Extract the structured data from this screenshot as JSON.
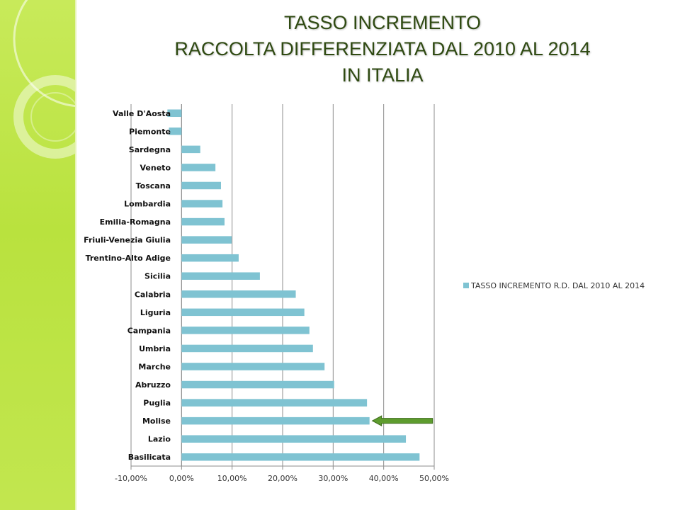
{
  "title_lines": [
    "TASSO INCREMENTO",
    "RACCOLTA DIFFERENZIATA DAL 2010 AL 2014",
    "IN ITALIA"
  ],
  "colors": {
    "bar": "#7fc3d2",
    "grid": "#8c8c8c",
    "arrow": "#5e9c2e",
    "sidebar": "#c0e44b"
  },
  "legend": {
    "position": "right",
    "label": "TASSO INCREMENTO R.D. DAL 2010 AL 2014"
  },
  "chart_data": {
    "type": "bar",
    "orientation": "horizontal",
    "categories": [
      "Valle D'Aosta",
      "Piemonte",
      "Sardegna",
      "Veneto",
      "Toscana",
      "Lombardia",
      "Emilia-Romagna",
      "Friuli-Venezia Giulia",
      "Trentino-Alto Adige",
      "Sicilia",
      "Calabria",
      "Liguria",
      "Campania",
      "Umbria",
      "Marche",
      "Abruzzo",
      "Puglia",
      "Molise",
      "Lazio",
      "Basilicata"
    ],
    "series": [
      {
        "name": "TASSO INCREMENTO R.D. DAL 2010 AL 2014",
        "values": [
          -2.8,
          -2.5,
          3.7,
          6.7,
          7.8,
          8.1,
          8.5,
          9.9,
          11.3,
          15.5,
          22.6,
          24.3,
          25.3,
          26.0,
          28.3,
          30.2,
          36.7,
          37.2,
          44.4,
          47.1
        ]
      }
    ],
    "xlim": [
      -10,
      50
    ],
    "xticks": [
      "-10,00%",
      "0,00%",
      "10,00%",
      "20,00%",
      "30,00%",
      "40,00%",
      "50,00%"
    ],
    "grid": "vertical",
    "annotation": {
      "type": "arrow",
      "points_to": "Molise"
    }
  }
}
